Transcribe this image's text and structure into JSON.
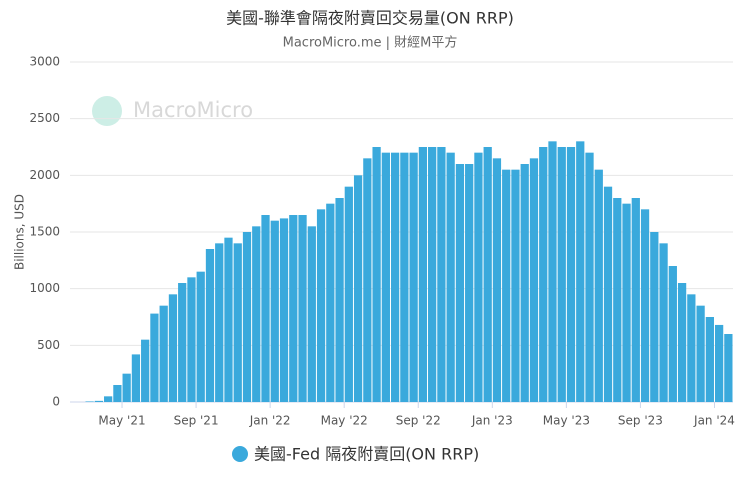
{
  "chart_data": {
    "type": "bar",
    "title": "美國-聯準會隔夜附賣回交易量(ON RRP)",
    "subtitle": "MacroMicro.me | 財經M平方",
    "watermark": "MacroMicro",
    "y_label": "Billions, USD",
    "categories": [
      null,
      null,
      null,
      null,
      "May '21",
      null,
      null,
      null,
      null,
      null,
      null,
      null,
      "Sep '21",
      null,
      null,
      null,
      null,
      null,
      null,
      null,
      "Jan '22",
      null,
      null,
      null,
      null,
      null,
      null,
      null,
      "May '22",
      null,
      null,
      null,
      null,
      null,
      null,
      null,
      "Sep '22",
      null,
      null,
      null,
      null,
      null,
      null,
      null,
      "Jan '23",
      null,
      null,
      null,
      null,
      null,
      null,
      null,
      "May '23",
      null,
      null,
      null,
      null,
      null,
      null,
      null,
      "Sep '23",
      null,
      null,
      null,
      null,
      null,
      null,
      null,
      "Jan '24",
      null
    ],
    "series": [
      {
        "name": "美國-Fed 隔夜附賣回(ON RRP)",
        "color": "#3aa9dc",
        "values": [
          5,
          10,
          50,
          150,
          250,
          420,
          550,
          780,
          850,
          950,
          1050,
          1100,
          1150,
          1350,
          1400,
          1450,
          1400,
          1500,
          1550,
          1650,
          1600,
          1620,
          1650,
          1650,
          1550,
          1700,
          1750,
          1800,
          1900,
          2000,
          2150,
          2250,
          2200,
          2200,
          2200,
          2200,
          2250,
          2250,
          2250,
          2200,
          2100,
          2100,
          2200,
          2250,
          2150,
          2050,
          2050,
          2100,
          2150,
          2250,
          2300,
          2250,
          2250,
          2300,
          2200,
          2050,
          1900,
          1800,
          1750,
          1800,
          1700,
          1500,
          1400,
          1200,
          1050,
          950,
          850,
          750,
          680,
          600
        ]
      }
    ],
    "ylim": [
      0,
      3000
    ],
    "yticks": [
      0,
      500,
      1000,
      1500,
      2000,
      2500,
      3000
    ],
    "grid": true
  }
}
